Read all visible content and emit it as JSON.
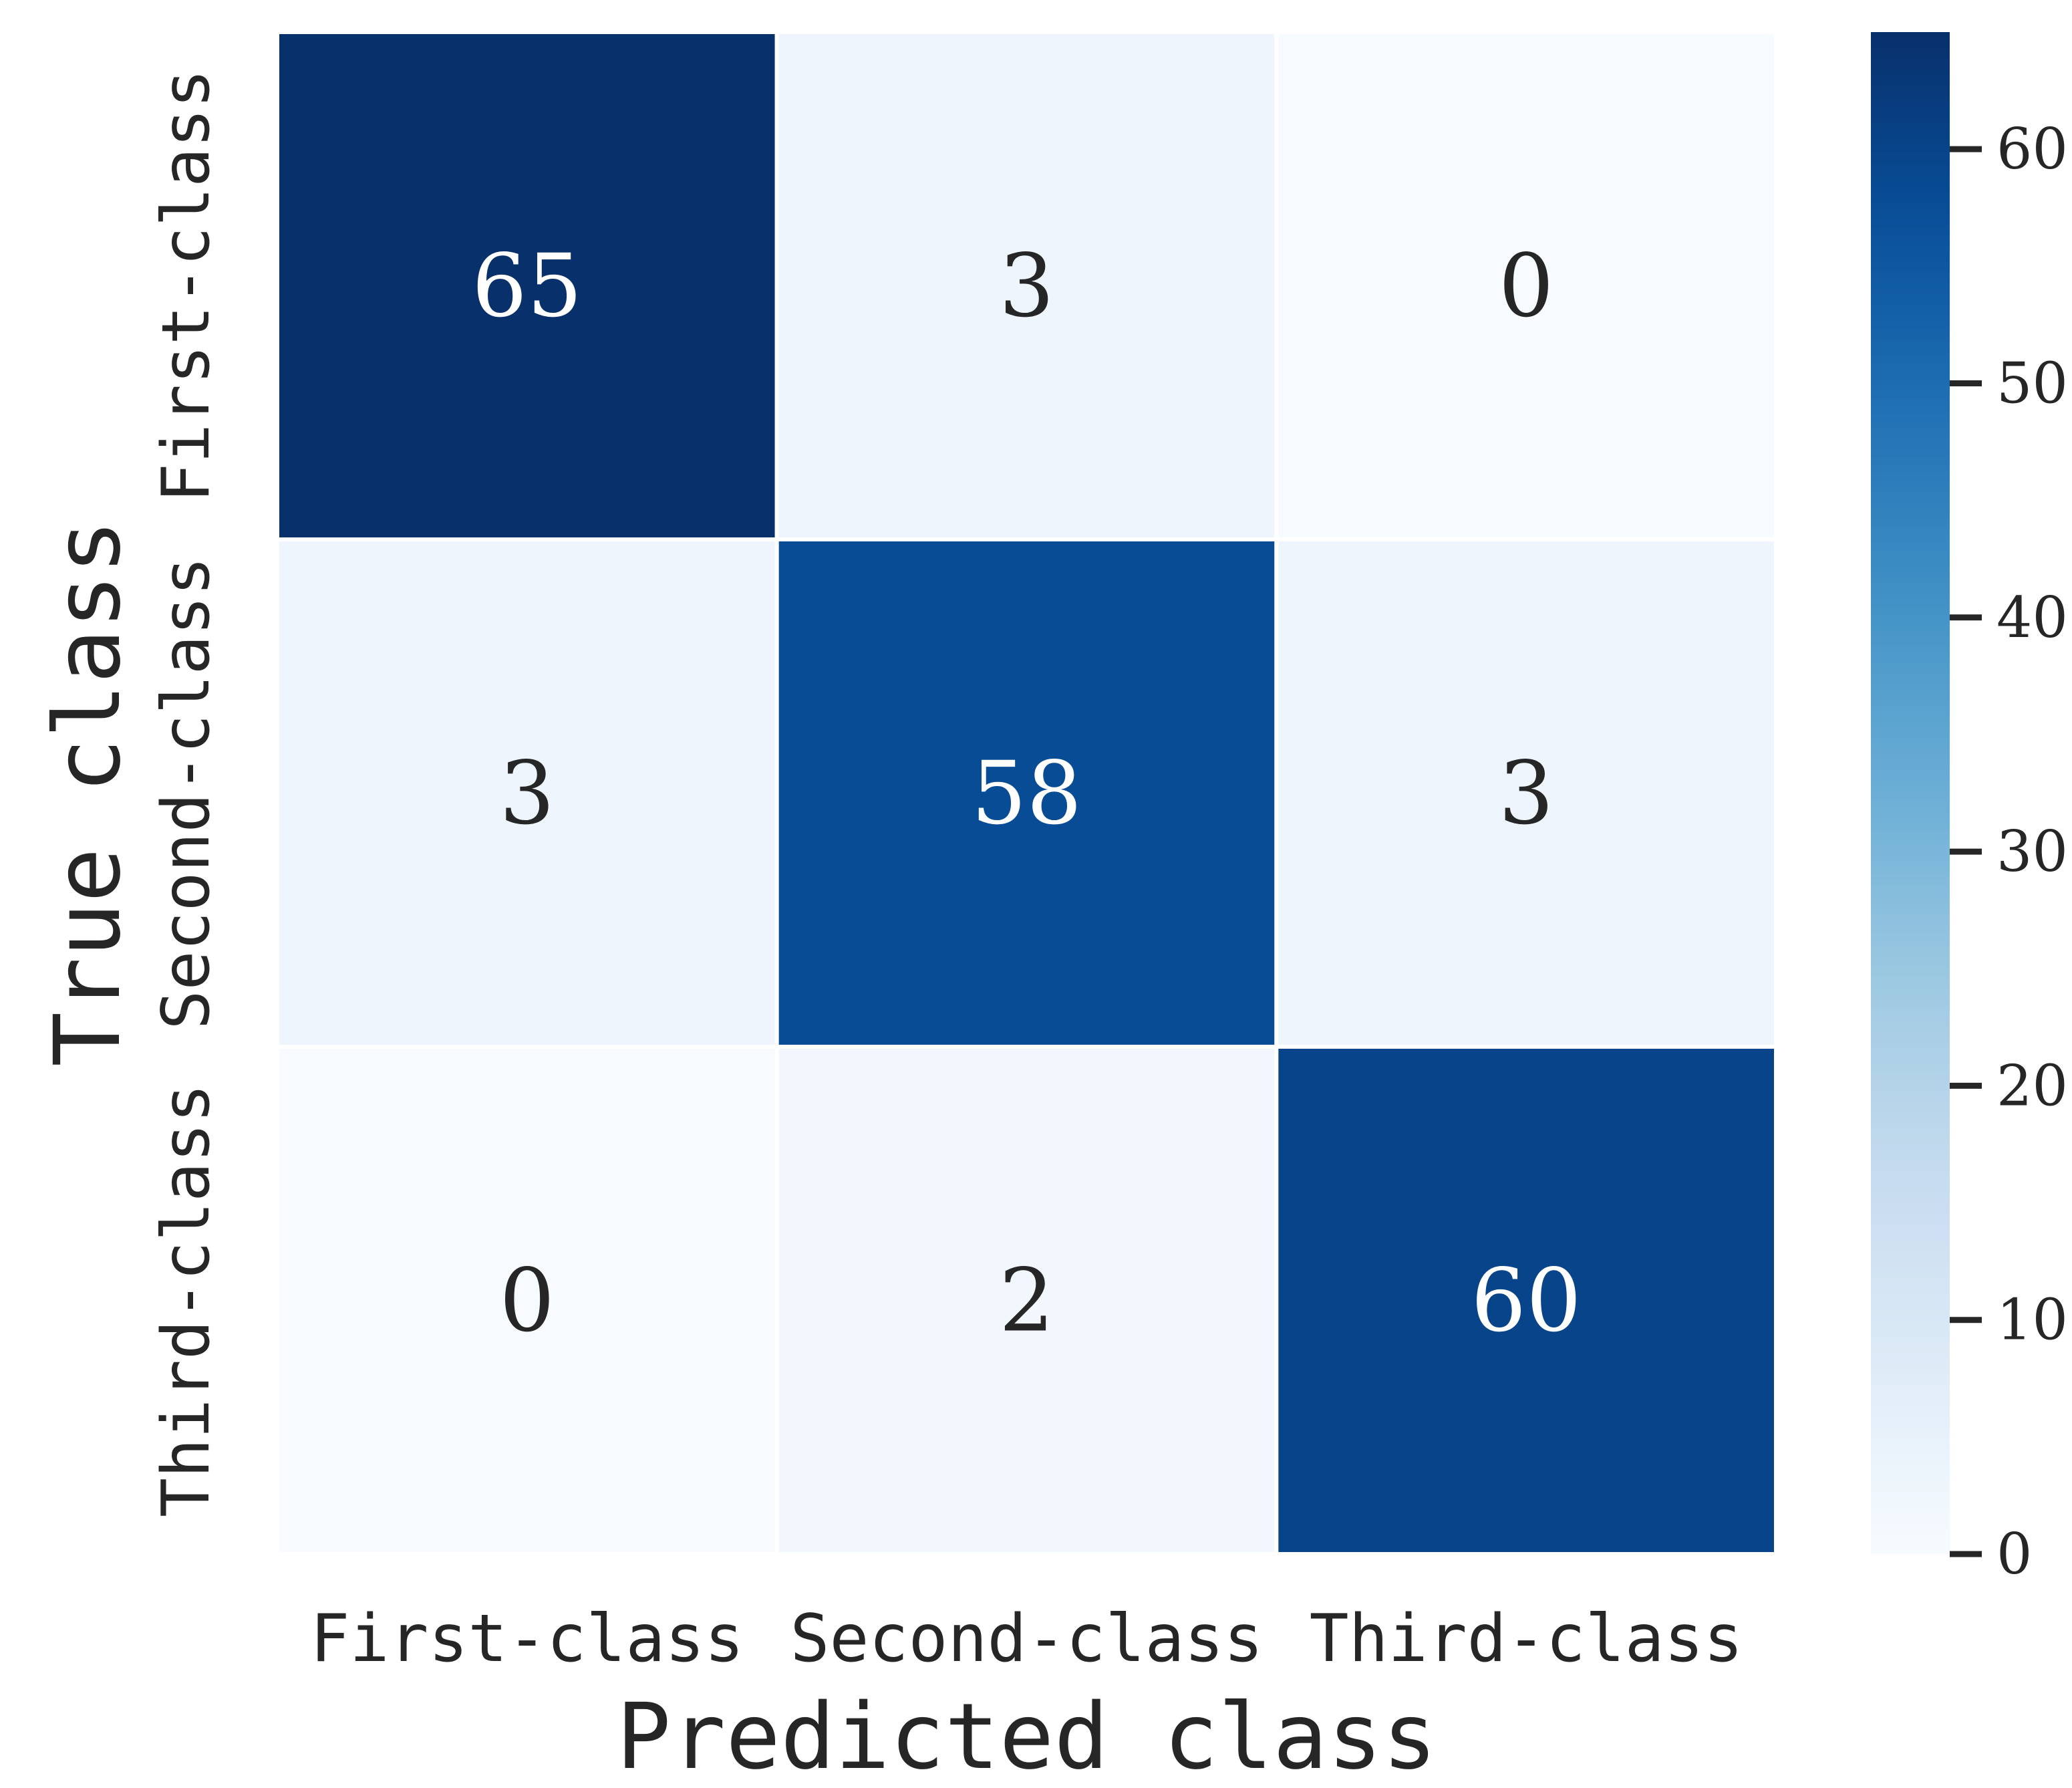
{
  "chart_data": {
    "type": "heatmap",
    "title": "",
    "xlabel": "Predicted class",
    "ylabel": "True class",
    "x_categories": [
      "First-class",
      "Second-class",
      "Third-class"
    ],
    "y_categories": [
      "First-class",
      "Second-class",
      "Third-class"
    ],
    "values": [
      [
        65,
        3,
        0
      ],
      [
        3,
        58,
        3
      ],
      [
        0,
        2,
        60
      ]
    ],
    "colormap": "Blues",
    "color_low": "#f7fbff",
    "color_high": "#08306b",
    "colorbar": {
      "range": [
        0,
        65
      ],
      "ticks": [
        0,
        10,
        20,
        30,
        40,
        50,
        60
      ],
      "tick_labels": [
        "0",
        "10",
        "20",
        "30",
        "40",
        "50",
        "60"
      ]
    },
    "annotation_dark_color": "#262626",
    "annotation_light_color": "#ffffff"
  }
}
